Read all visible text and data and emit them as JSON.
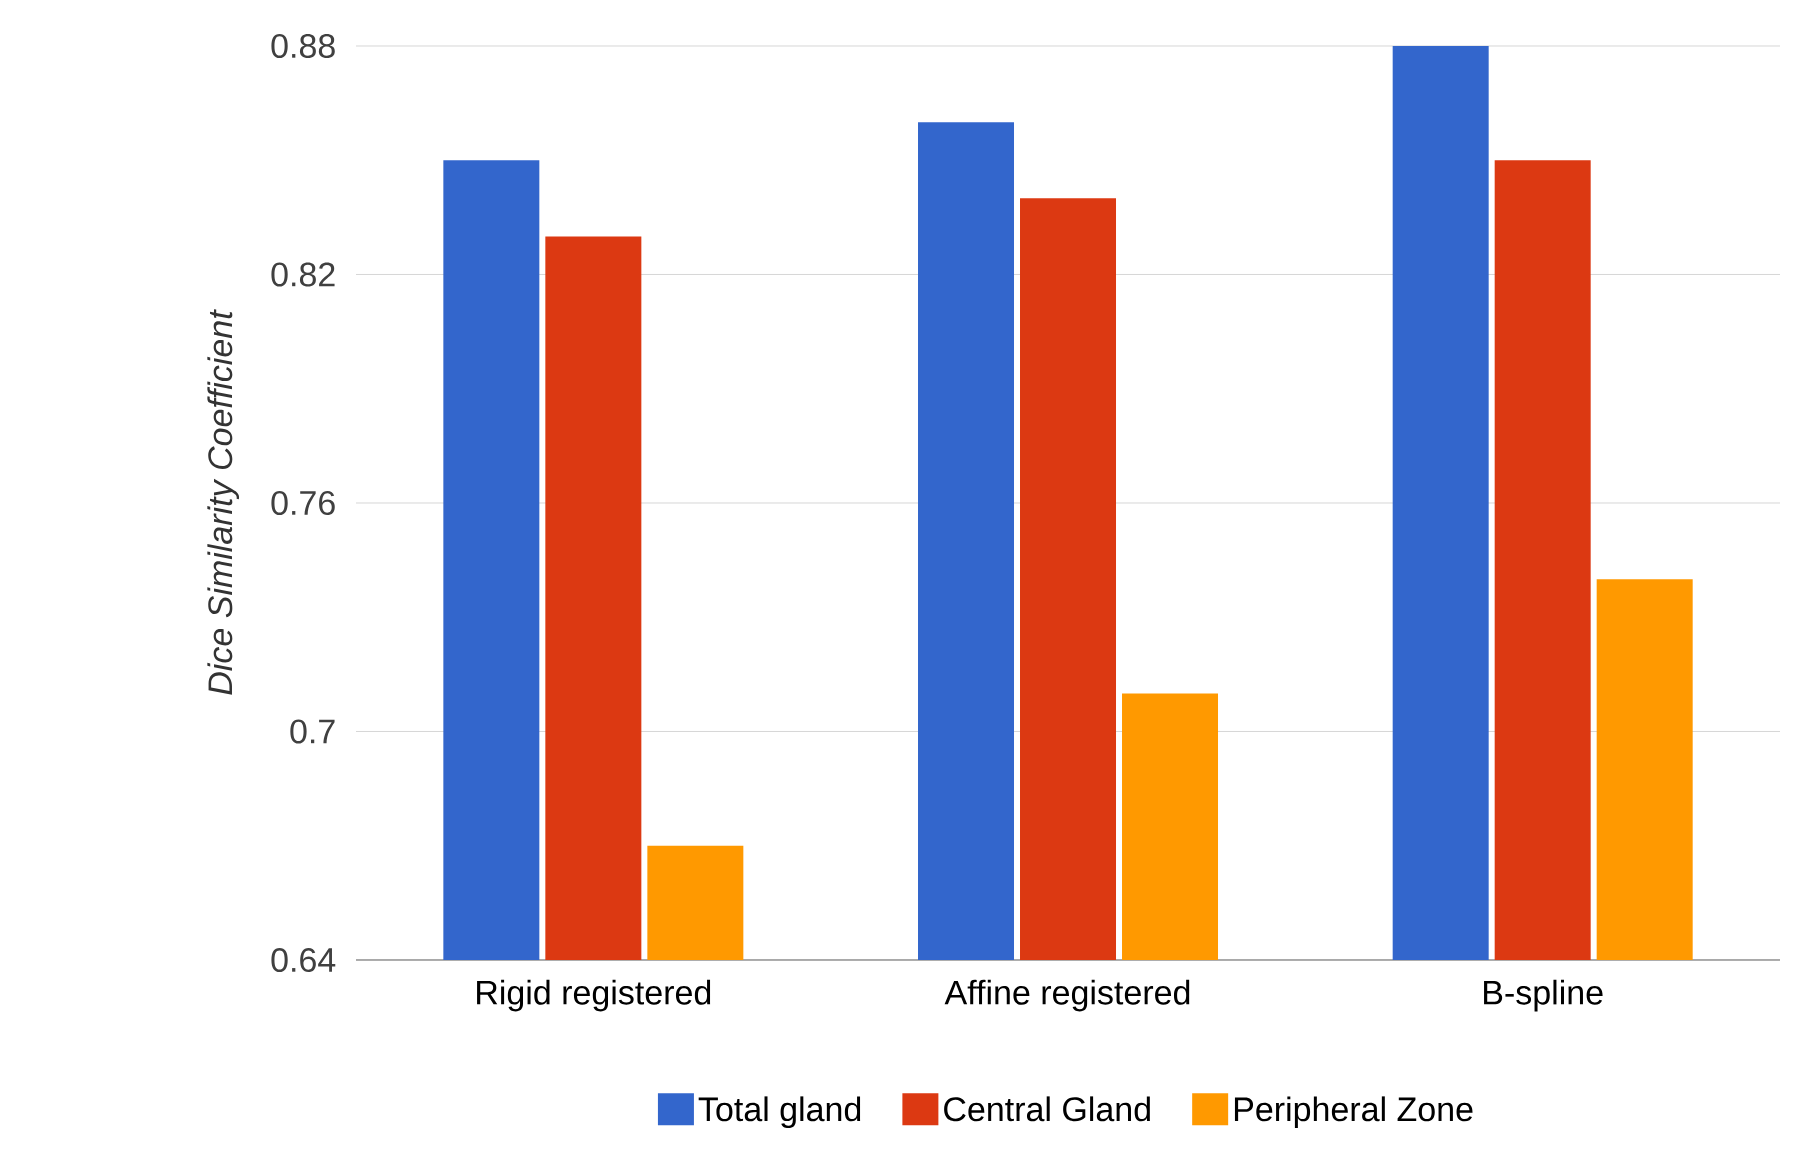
{
  "chart_data": {
    "type": "bar",
    "ylabel": "Dice Similarity Coefficient",
    "categories": [
      "Rigid registered",
      "Affine registered",
      "B-spline"
    ],
    "series": [
      {
        "name": "Total gland",
        "color": "#3366cc",
        "values": [
          0.85,
          0.86,
          0.88
        ]
      },
      {
        "name": "Central Gland",
        "color": "#dc3912",
        "values": [
          0.83,
          0.84,
          0.85
        ]
      },
      {
        "name": "Peripheral Zone",
        "color": "#ff9900",
        "values": [
          0.67,
          0.71,
          0.74
        ]
      }
    ],
    "ylim": [
      0.64,
      0.88
    ],
    "yticks": [
      0.64,
      0.7,
      0.76,
      0.82,
      0.88
    ],
    "grid": "y",
    "legend": "bottom"
  }
}
